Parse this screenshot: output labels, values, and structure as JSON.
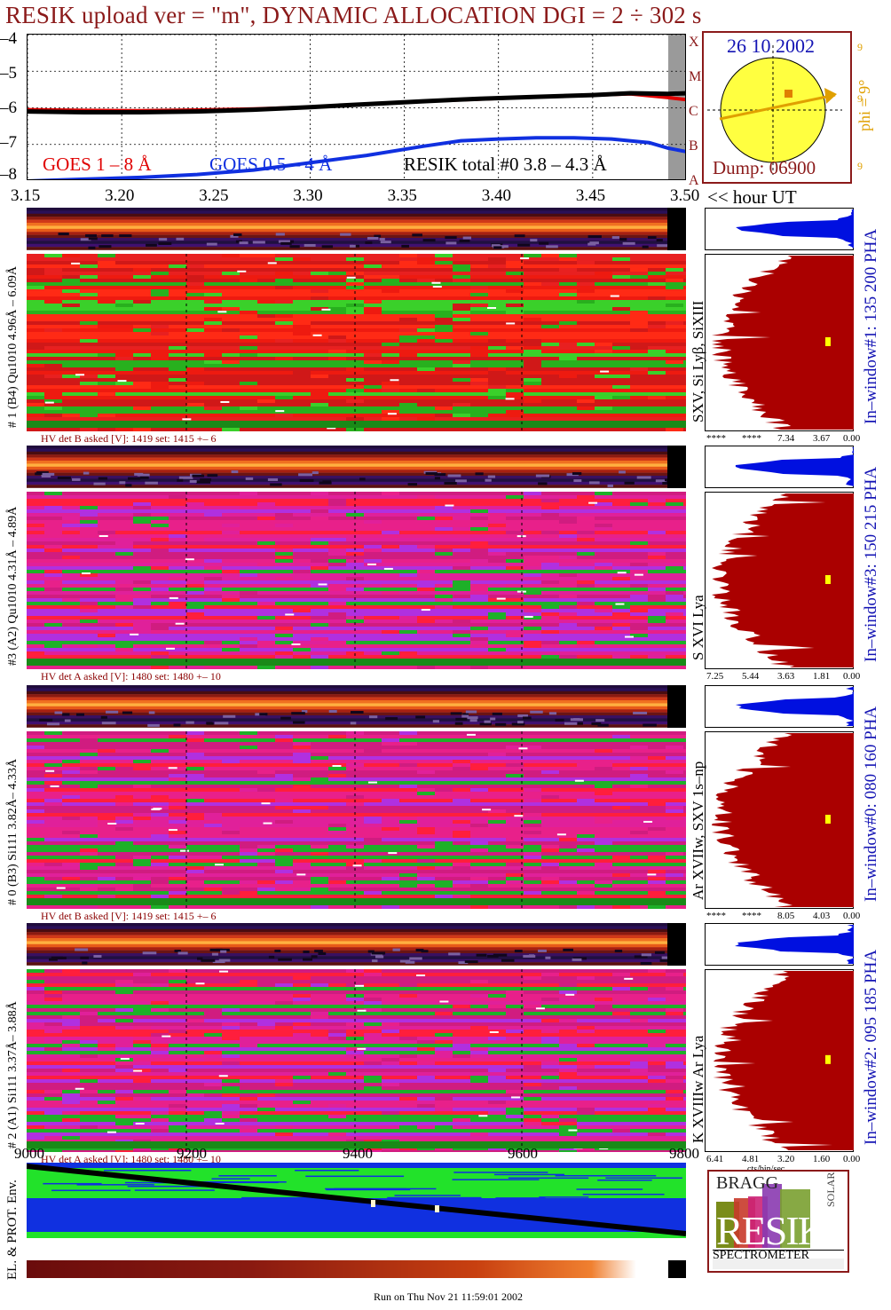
{
  "header": {
    "title": "RESIK upload ver = \"m\", DYNAMIC ALLOCATION  DGI =   2 ÷ 302 s"
  },
  "goes_panel": {
    "date": "26 10 2002",
    "dump": "Dump: 06900",
    "legend_goes18": "GOES 1 – 8 Å",
    "legend_goes054": "GOES 0.5 – 4 Å",
    "legend_resik": "RESIK total #0  3.8 – 4.3 Å",
    "class_letters": [
      "X",
      "M",
      "C",
      "B",
      "A"
    ],
    "y_ticks": [
      "–4",
      "–5",
      "–6",
      "–7",
      "–8"
    ],
    "x_ticks": [
      "3.15",
      "3.20",
      "3.25",
      "3.30",
      "3.35",
      "3.40",
      "3.45",
      "3.50"
    ],
    "x_suffix": "<< hour UT",
    "phi_label": "phi =  9°",
    "phi_small": [
      "9",
      "9",
      "9"
    ]
  },
  "channels": [
    {
      "left_label": "# 1 (B4) Qu1010 4.96Å – 6.09Å",
      "line_label": "SXV, Si Lyβ, SiXIII",
      "window_label": "In–window#1:  135 200 PHA",
      "hv": "HV det B asked [V]:  1419 set:  1415 +–    6",
      "axis_ticks": [
        "****",
        "****",
        "7.34",
        "3.67",
        "0.00"
      ],
      "main_color": "red-green"
    },
    {
      "left_label": "#3 (A2) Qu1010  4.31Å – 4.89Å",
      "line_label": "S XVI Lya",
      "window_label": "In–window#3:  150 215 PHA",
      "hv": "HV det A asked [V]:  1480 set:  1480 +–    10",
      "axis_ticks": [
        "7.25",
        "5.44",
        "3.63",
        "1.81",
        "0.00"
      ],
      "main_color": "magenta-red"
    },
    {
      "left_label": "# 0 (B3) Si111  3.82Å– 4.33Å",
      "line_label": "Ar XVIIw,  SXV 1s–np",
      "window_label": "In–window#0:  080 160 PHA",
      "hv": "HV det B asked [V]:  1419 set:  1415 +–    6",
      "axis_ticks": [
        "****",
        "****",
        "8.05",
        "4.03",
        "0.00"
      ],
      "main_color": "magenta-red"
    },
    {
      "left_label": "# 2 (A1) Si111  3.37Å– 3.88Å",
      "line_label": "K XVIIIw  Ar Lya",
      "window_label": "In–window#2:  095 185 PHA",
      "hv": "HV det A asked [V]:  1480 set:  1480 +–    10",
      "axis_ticks": [
        "6.41",
        "4.81",
        "3.20",
        "1.60",
        "0.00"
      ],
      "axis_unit": "cts/bin/sec",
      "main_color": "magenta-red"
    }
  ],
  "bottom": {
    "x_ticks": [
      "9000",
      "9200",
      "9400",
      "9600",
      "9800"
    ],
    "env_label": "EL. & PROT. Env.",
    "run_info": "Run on Thu Nov 21 11:59:01 2002"
  },
  "logo": {
    "letters": "RESIK",
    "bragg": "BRAGG",
    "solar": "SOLAR",
    "spectrometer": "SPECTROMETER"
  },
  "chart_data": {
    "type": "line",
    "title": "RESIK upload ver = \"m\", DYNAMIC ALLOCATION  DGI =   2 ÷ 302 s",
    "xlabel": "<< hour UT",
    "ylabel": "",
    "xlim": [
      3.15,
      3.5
    ],
    "ylim": [
      -8,
      -4
    ],
    "x_ticks": [
      3.15,
      3.2,
      3.25,
      3.3,
      3.35,
      3.4,
      3.45,
      3.5
    ],
    "y_ticks": [
      -4,
      -5,
      -6,
      -7,
      -8
    ],
    "grid": true,
    "series": [
      {
        "name": "GOES 1 – 8 Å",
        "color": "#e00000",
        "x": [
          3.15,
          3.18,
          3.21,
          3.24,
          3.27,
          3.3,
          3.33,
          3.36,
          3.39,
          3.42,
          3.45,
          3.47,
          3.49,
          3.5
        ],
        "y": [
          -6.05,
          -6.07,
          -6.08,
          -6.06,
          -6.03,
          -5.98,
          -5.9,
          -5.82,
          -5.76,
          -5.7,
          -5.65,
          -5.62,
          -5.72,
          -5.78
        ]
      },
      {
        "name": "GOES 0.5 – 4 Å",
        "color": "#1030e0",
        "x": [
          3.15,
          3.18,
          3.21,
          3.24,
          3.27,
          3.3,
          3.33,
          3.36,
          3.38,
          3.4,
          3.42,
          3.44,
          3.46,
          3.48,
          3.49,
          3.5
        ],
        "y": [
          -8.0,
          -7.95,
          -7.9,
          -7.82,
          -7.7,
          -7.5,
          -7.3,
          -7.05,
          -6.9,
          -6.85,
          -6.82,
          -6.82,
          -6.85,
          -6.95,
          -7.1,
          -7.2
        ]
      },
      {
        "name": "RESIK total #0  3.8 – 4.3 Å",
        "color": "#000000",
        "x": [
          3.15,
          3.18,
          3.21,
          3.24,
          3.27,
          3.3,
          3.33,
          3.36,
          3.39,
          3.42,
          3.45,
          3.47,
          3.49,
          3.5
        ],
        "y": [
          -6.1,
          -6.12,
          -6.12,
          -6.1,
          -6.05,
          -5.98,
          -5.9,
          -5.82,
          -5.75,
          -5.7,
          -5.65,
          -5.6,
          -5.62,
          -5.6
        ]
      }
    ]
  },
  "colors": {
    "title": "#8b1a1a",
    "goes18": "#e00000",
    "goes054": "#1030e0",
    "resik": "#000000",
    "hist_fill": "#aa0000",
    "pha_fill": "#0010e0",
    "sun": "#ffff40",
    "sun_arrow": "#e0a000"
  }
}
